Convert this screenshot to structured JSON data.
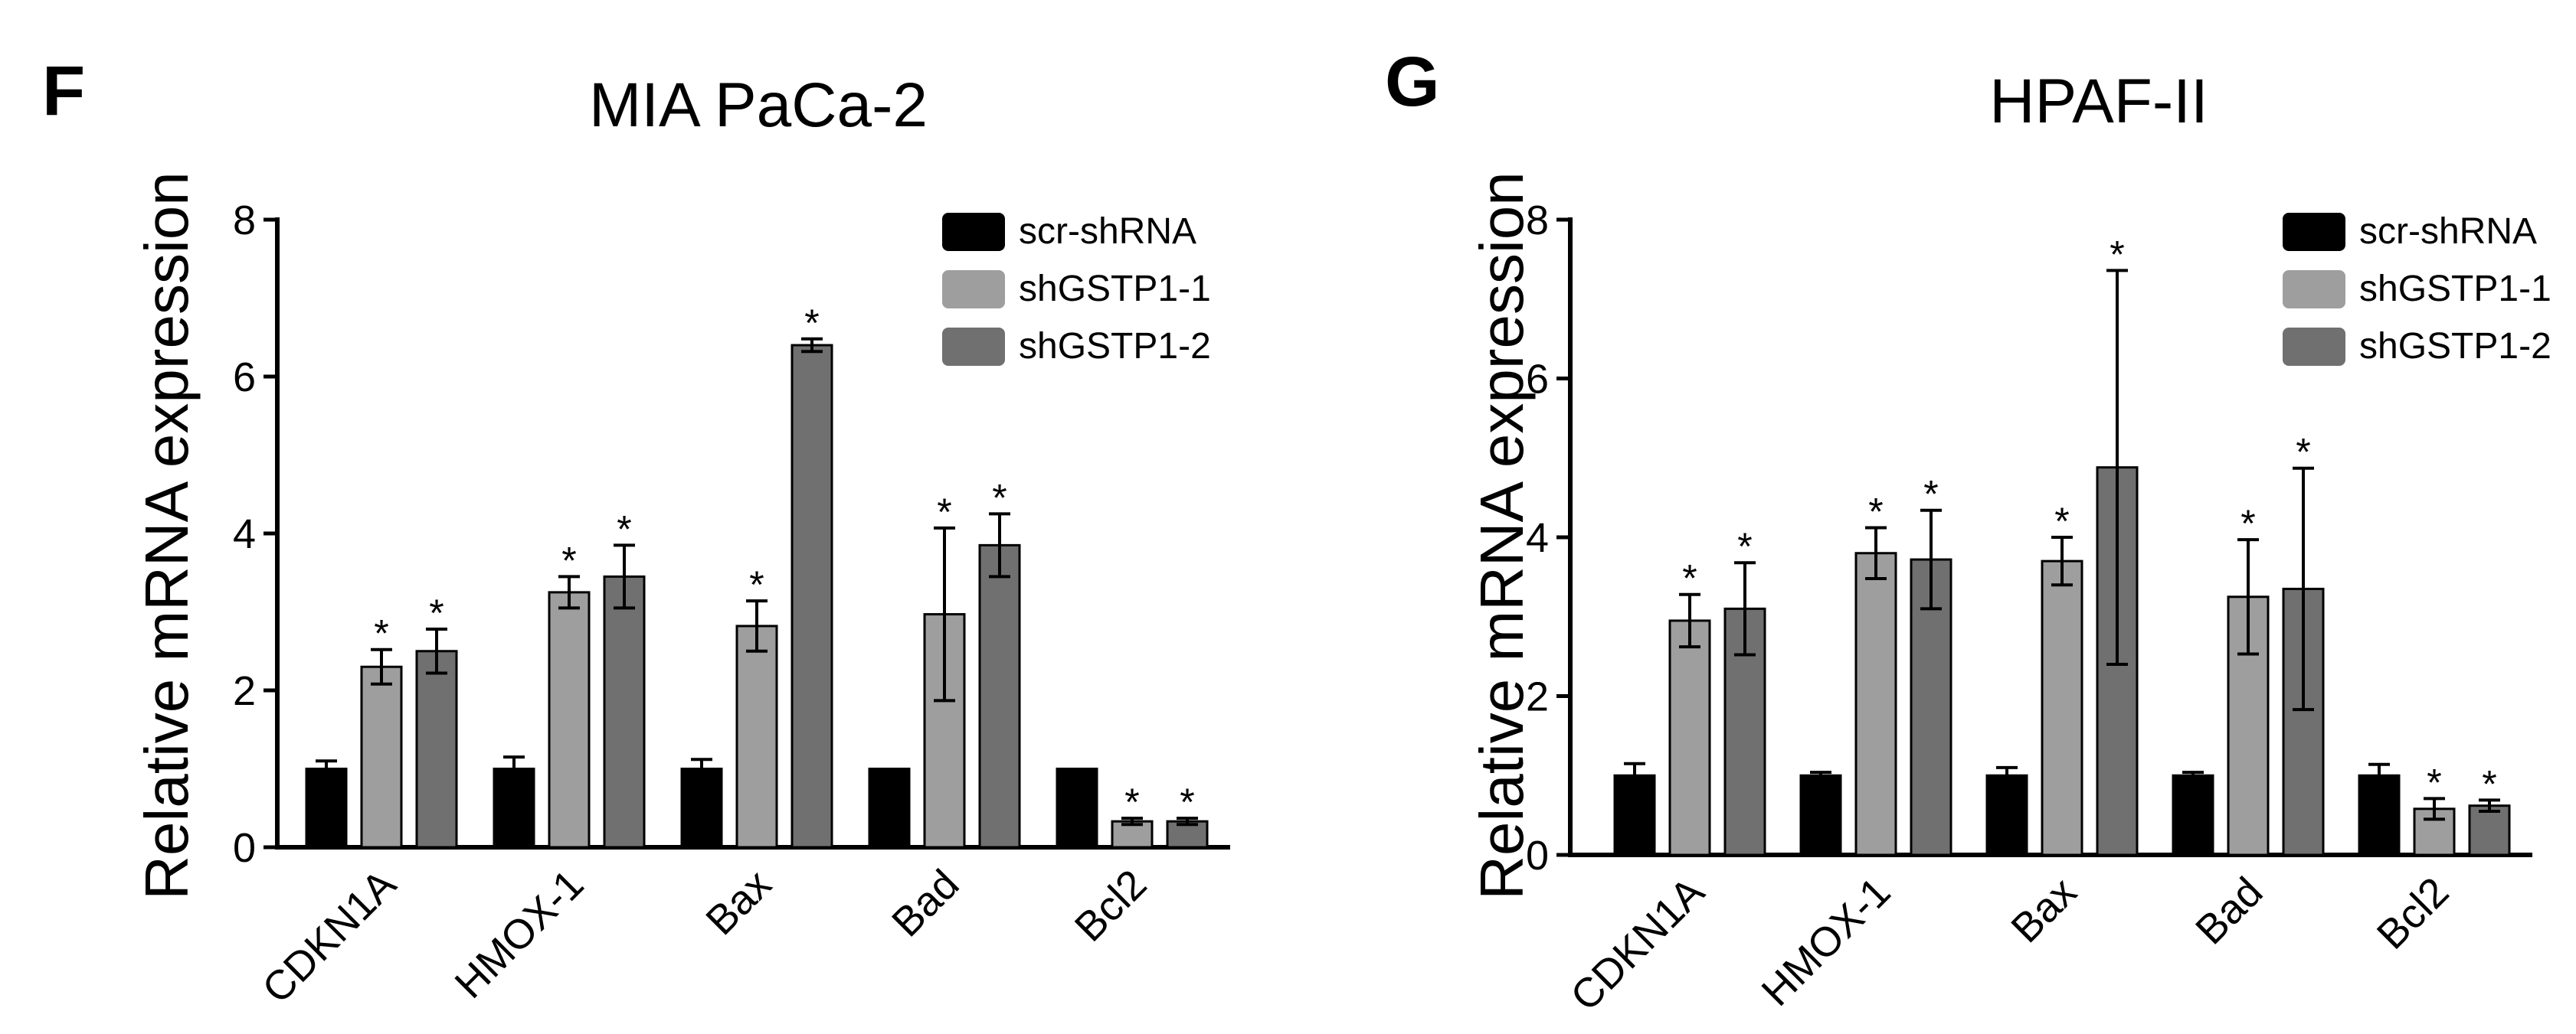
{
  "figure": {
    "colors": {
      "axis": "#000000",
      "edge": "#000000"
    }
  },
  "chart_data": [
    {
      "type": "bar",
      "panel_label": "F",
      "title": "MIA PaCa-2",
      "xlabel": "",
      "ylabel": "Relative mRNA expression",
      "ylim": [
        0,
        8
      ],
      "yticks": [
        "0",
        "2",
        "4",
        "6",
        "8"
      ],
      "categories": [
        "CDKN1A",
        "HMOX-1",
        "Bax",
        "Bad",
        "Bcl2"
      ],
      "series": [
        {
          "name": "scr-shRNA",
          "color": "#000000",
          "values": [
            1.0,
            1.0,
            1.0,
            1.0,
            1.0
          ],
          "errors": [
            0.1,
            0.15,
            0.12,
            0.0,
            0.0
          ],
          "significant": [
            false,
            false,
            false,
            false,
            false
          ]
        },
        {
          "name": "shGSTP1-1",
          "color": "#9e9e9e",
          "values": [
            2.3,
            3.25,
            2.82,
            2.97,
            0.33
          ],
          "errors": [
            0.22,
            0.2,
            0.32,
            1.1,
            0.04
          ],
          "significant": [
            true,
            true,
            true,
            true,
            true
          ]
        },
        {
          "name": "shGSTP1-2",
          "color": "#707070",
          "values": [
            2.5,
            3.45,
            6.4,
            3.85,
            0.33
          ],
          "errors": [
            0.28,
            0.4,
            0.08,
            0.4,
            0.04
          ],
          "significant": [
            true,
            true,
            true,
            true,
            true
          ]
        }
      ],
      "significance_marker": "*",
      "legend_position": "top-right",
      "grid": false
    },
    {
      "type": "bar",
      "panel_label": "G",
      "title": "HPAF-II",
      "xlabel": "",
      "ylabel": "Relative mRNA expression",
      "ylim": [
        0,
        8
      ],
      "yticks": [
        "0",
        "2",
        "4",
        "6",
        "8"
      ],
      "categories": [
        "CDKN1A",
        "HMOX-1",
        "Bax",
        "Bad",
        "Bcl2"
      ],
      "series": [
        {
          "name": "scr-shRNA",
          "color": "#000000",
          "values": [
            1.0,
            1.0,
            1.0,
            1.0,
            1.0
          ],
          "errors": [
            0.15,
            0.04,
            0.1,
            0.04,
            0.14
          ],
          "significant": [
            false,
            false,
            false,
            false,
            false
          ]
        },
        {
          "name": "shGSTP1-1",
          "color": "#9e9e9e",
          "values": [
            2.95,
            3.8,
            3.7,
            3.25,
            0.58
          ],
          "errors": [
            0.33,
            0.32,
            0.3,
            0.72,
            0.13
          ],
          "significant": [
            true,
            true,
            true,
            true,
            true
          ]
        },
        {
          "name": "shGSTP1-2",
          "color": "#707070",
          "values": [
            3.1,
            3.72,
            4.88,
            3.35,
            0.62
          ],
          "errors": [
            0.58,
            0.62,
            2.48,
            1.52,
            0.07
          ],
          "significant": [
            true,
            true,
            true,
            true,
            true
          ]
        }
      ],
      "significance_marker": "*",
      "legend_position": "top-right",
      "grid": false
    }
  ]
}
